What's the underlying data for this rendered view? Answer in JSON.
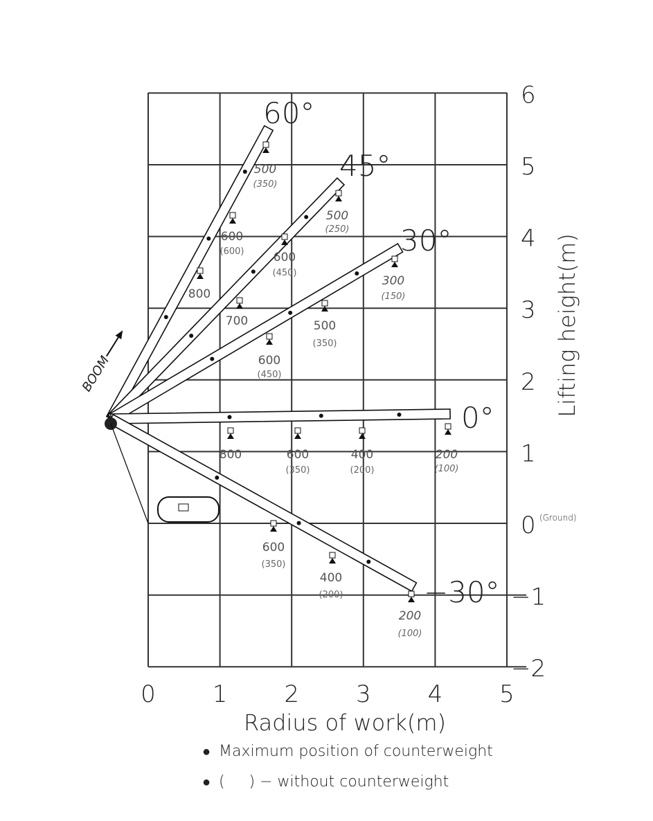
{
  "diagram": {
    "x_axis": {
      "title": "Radius of work(m)",
      "ticks": [
        "0",
        "1",
        "2",
        "3",
        "4",
        "5"
      ]
    },
    "y_axis": {
      "title": "Lifting height(m)",
      "ticks": [
        "6",
        "5",
        "4",
        "3",
        "2",
        "1",
        "0",
        "−1",
        "−2"
      ],
      "ground_note": "(Ground)"
    },
    "boom_label": "BOOM",
    "booms": [
      {
        "angle": "60°",
        "loads": [
          {
            "value": "500",
            "without": "(350)"
          },
          {
            "value": "600",
            "without": "(600)"
          },
          {
            "value": "800",
            "without": ""
          }
        ]
      },
      {
        "angle": "45°",
        "loads": [
          {
            "value": "500",
            "without": "(250)"
          },
          {
            "value": "600",
            "without": "(450)"
          },
          {
            "value": "700",
            "without": ""
          }
        ]
      },
      {
        "angle": "30°",
        "loads": [
          {
            "value": "300",
            "without": "(150)"
          },
          {
            "value": "500",
            "without": "(350)"
          },
          {
            "value": "600",
            "without": "(450)"
          }
        ]
      },
      {
        "angle": "0°",
        "loads": [
          {
            "value": "800",
            "without": ""
          },
          {
            "value": "600",
            "without": "(350)"
          },
          {
            "value": "400",
            "without": "(200)"
          },
          {
            "value": "200",
            "without": "(100)"
          }
        ]
      },
      {
        "angle": "−30°",
        "loads": [
          {
            "value": "600",
            "without": "(350)"
          },
          {
            "value": "400",
            "without": "(200)"
          },
          {
            "value": "200",
            "without": "(100)"
          }
        ]
      }
    ],
    "legend": [
      {
        "marker": "●",
        "text": "Maximum position of counterweight"
      },
      {
        "marker": "●",
        "text": "(     ) − without counterweight"
      }
    ]
  }
}
